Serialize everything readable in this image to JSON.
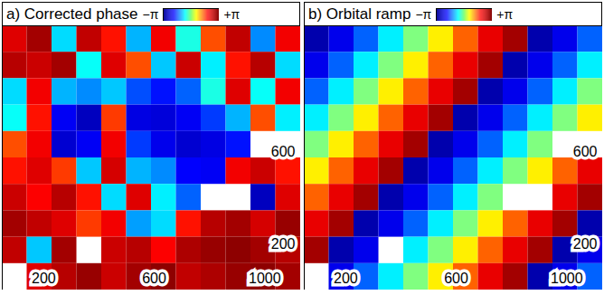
{
  "chart_data": [
    {
      "type": "heatmap",
      "title": "a) Corrected phase",
      "xlim": [
        50,
        1130
      ],
      "ylim": [
        0,
        1150
      ],
      "xticks": [
        200,
        600,
        1000
      ],
      "yticks": [
        200,
        600
      ],
      "colorbar_range": [
        -3.1416,
        3.1416
      ],
      "colorbar_ticks": [
        {
          "value": -3.1416,
          "label": "−π"
        },
        {
          "value": 3.1416,
          "label": "+π"
        }
      ],
      "cells": [
        [
          2.2,
          2.8,
          -0.8,
          2.5,
          1.8,
          -1.0,
          2.0,
          -0.5,
          1.5,
          2.5,
          -1.2,
          2.0
        ],
        [
          2.6,
          2.4,
          2.8,
          -0.6,
          2.2,
          1.5,
          -0.9,
          2.4,
          -0.7,
          1.8,
          2.6,
          -0.8
        ],
        [
          -0.8,
          2.0,
          -1.0,
          -1.2,
          -0.9,
          -1.5,
          -1.8,
          -1.4,
          -0.5,
          2.2,
          -0.6,
          2.0
        ],
        [
          -0.6,
          1.8,
          -2.0,
          -2.6,
          1.6,
          -2.2,
          -2.3,
          -2.0,
          -1.6,
          -1.0,
          1.5,
          -0.7
        ],
        [
          1.5,
          2.0,
          -2.4,
          -2.0,
          2.0,
          -1.6,
          -2.1,
          -2.4,
          -2.2,
          -1.8,
          null,
          null
        ],
        [
          1.8,
          2.2,
          1.6,
          -0.9,
          2.3,
          -1.0,
          -1.2,
          -1.9,
          -2.0,
          2.0,
          2.4,
          1.8
        ],
        [
          2.4,
          1.9,
          2.6,
          1.8,
          -0.8,
          2.2,
          -0.7,
          -1.4,
          null,
          null,
          -2.6,
          2.2
        ],
        [
          2.8,
          2.5,
          2.2,
          1.6,
          2.0,
          -1.1,
          -0.8,
          1.8,
          2.6,
          2.8,
          2.3,
          2.9
        ],
        [
          2.5,
          -0.9,
          2.8,
          null,
          2.4,
          2.6,
          1.9,
          2.7,
          2.9,
          3.0,
          2.8,
          2.6
        ],
        [
          null,
          2.2,
          2.6,
          2.9,
          2.4,
          2.8,
          3.0,
          2.5,
          2.7,
          2.9,
          3.0,
          2.8
        ]
      ]
    },
    {
      "type": "heatmap",
      "title": "b) Orbital ramp",
      "xlim": [
        50,
        1130
      ],
      "ylim": [
        0,
        1150
      ],
      "xticks": [
        200,
        600,
        1000
      ],
      "yticks": [
        200,
        600
      ],
      "colorbar_range": [
        -3.1416,
        3.1416
      ],
      "colorbar_ticks": [
        {
          "value": -3.1416,
          "label": "−π"
        },
        {
          "value": 3.1416,
          "label": "+π"
        }
      ],
      "cells": [
        [
          -2.8,
          -2.1,
          -1.4,
          -0.7,
          0.0,
          0.7,
          1.4,
          2.1,
          2.8,
          -2.8,
          -2.1,
          -1.4
        ],
        [
          -2.1,
          -1.4,
          -0.7,
          0.0,
          0.7,
          1.4,
          2.1,
          2.8,
          -2.8,
          -2.1,
          -1.4,
          -0.7
        ],
        [
          -1.4,
          -0.7,
          0.0,
          0.7,
          1.4,
          2.1,
          2.8,
          -2.8,
          -2.1,
          -1.4,
          -0.7,
          0.0
        ],
        [
          -0.7,
          0.0,
          0.7,
          1.4,
          2.1,
          2.8,
          -2.8,
          -2.1,
          -1.4,
          -0.7,
          0.0,
          0.7
        ],
        [
          0.0,
          0.7,
          1.4,
          2.1,
          2.8,
          -2.8,
          -2.1,
          -1.4,
          -0.7,
          0.0,
          null,
          null
        ],
        [
          0.7,
          1.4,
          2.1,
          2.8,
          -2.8,
          -2.1,
          -1.4,
          -0.7,
          0.0,
          0.7,
          1.4,
          2.1
        ],
        [
          1.4,
          2.1,
          2.8,
          -2.8,
          -2.1,
          -1.4,
          -0.7,
          0.0,
          null,
          null,
          2.1,
          2.8
        ],
        [
          2.1,
          2.8,
          -2.8,
          -2.1,
          -1.4,
          -0.7,
          0.0,
          0.7,
          1.4,
          2.1,
          2.8,
          -2.8
        ],
        [
          2.8,
          -2.8,
          -2.1,
          null,
          -0.7,
          0.0,
          0.7,
          1.4,
          2.1,
          2.8,
          -2.8,
          -2.1
        ],
        [
          null,
          -2.1,
          -1.4,
          -0.7,
          0.0,
          0.7,
          1.4,
          2.1,
          2.8,
          -2.8,
          -2.1,
          -1.4
        ]
      ]
    }
  ]
}
